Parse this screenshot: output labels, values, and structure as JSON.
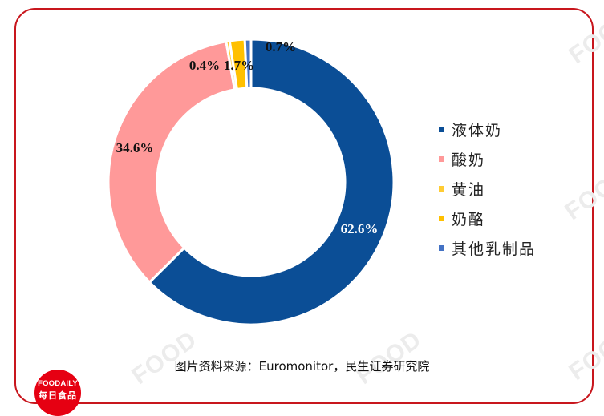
{
  "chart_data": {
    "type": "pie",
    "variant": "donut",
    "title": "",
    "categories": [
      "液体奶",
      "酸奶",
      "黄油",
      "奶酪",
      "其他乳制品"
    ],
    "values": [
      62.6,
      34.6,
      0.4,
      1.7,
      0.7
    ],
    "labels": [
      "62.6%",
      "34.6%",
      "0.4%",
      "1.7%",
      "0.7%"
    ],
    "colors": [
      "#0B4E96",
      "#FF9999",
      "#FFCC33",
      "#FFC000",
      "#4472C4"
    ],
    "start_angle": "12 o'clock",
    "direction": "clockwise",
    "legend_position": "right"
  },
  "legend": {
    "items": [
      {
        "label": "液体奶",
        "color": "#0B4E96"
      },
      {
        "label": "酸奶",
        "color": "#FF9999"
      },
      {
        "label": "黄油",
        "color": "#FFCC33"
      },
      {
        "label": "奶酪",
        "color": "#FFC000"
      },
      {
        "label": "其他乳制品",
        "color": "#4472C4"
      }
    ]
  },
  "source": "图片资料来源：Euromonitor，民生证券研究院",
  "logo": {
    "en": "FOODAILY",
    "cn": "每日食品"
  },
  "watermark": "FOOD",
  "frame_color": "#C8161D"
}
